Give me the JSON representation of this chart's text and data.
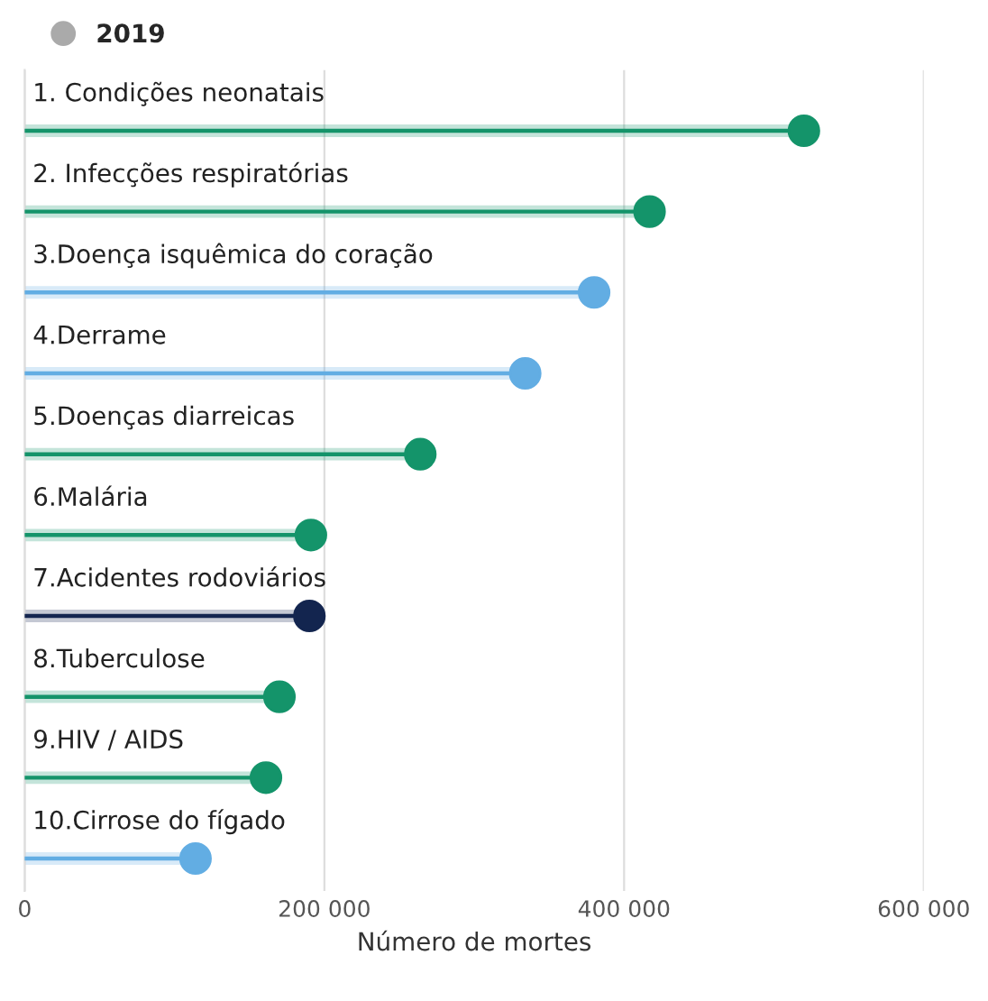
{
  "chart_data": {
    "type": "lollipop",
    "orientation": "horizontal",
    "xlabel": "Número de mortes",
    "categories": [
      "1. Condições neonatais",
      "2. Infecções respiratórias",
      "3.Doença isquêmica do coração",
      "4.Derrame",
      "5.Doenças diarreicas",
      "6.Malária",
      "7.Acidentes rodoviários",
      "8.Tuberculose",
      "9.HIV / AIDS",
      "10.Cirrose do fígado"
    ],
    "series": [
      {
        "name": "2019",
        "color": "#aaaaaa",
        "colors": [
          "#14946a",
          "#14946a",
          "#62ade3",
          "#62ade3",
          "#14946a",
          "#14946a",
          "#13254f",
          "#14946a",
          "#14946a",
          "#62ade3"
        ],
        "values": [
          520000,
          417000,
          380000,
          334000,
          264000,
          191000,
          190000,
          170000,
          161000,
          114000
        ]
      }
    ],
    "xlim": [
      0,
      600000
    ],
    "xticks": [
      {
        "value": 0,
        "label": "0"
      },
      {
        "value": 200000,
        "label": "200 000"
      },
      {
        "value": 400000,
        "label": "400 000"
      },
      {
        "value": 600000,
        "label": "600 000"
      }
    ],
    "grid": "x",
    "legend": "top left",
    "marker": "circle"
  }
}
